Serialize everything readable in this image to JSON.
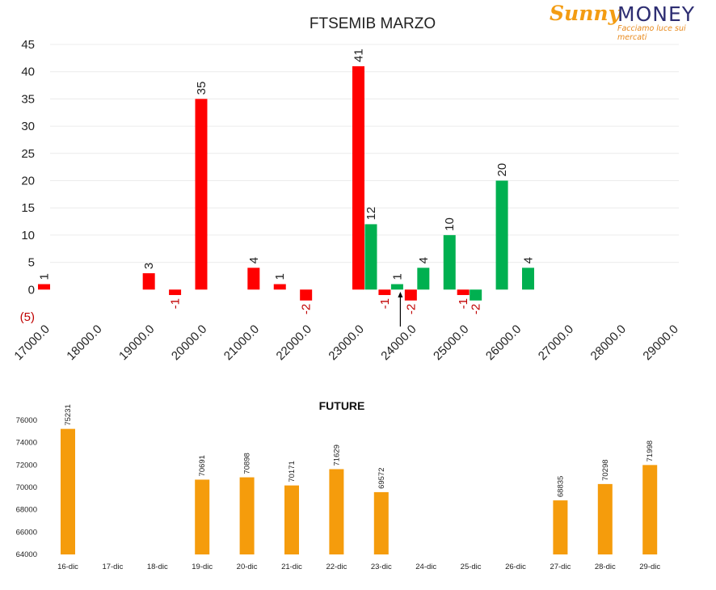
{
  "logo": {
    "brand_part1": "Sunny",
    "brand_part2": "MONEY",
    "tagline": "Facciamo luce sui mercati",
    "colors": {
      "sunny": "#f39c12",
      "money": "#2e2e72"
    }
  },
  "chart_data": [
    {
      "type": "bar",
      "title": "FTSEMIB MARZO",
      "ylim": [
        -5,
        45
      ],
      "yticks": [
        -5,
        0,
        5,
        10,
        15,
        20,
        25,
        30,
        35,
        40,
        45
      ],
      "yticklabels": [
        "(5)",
        "0",
        "5",
        "10",
        "15",
        "20",
        "25",
        "30",
        "35",
        "40",
        "45"
      ],
      "xlim": [
        17000,
        29000
      ],
      "xticks": [
        17000,
        18000,
        19000,
        20000,
        21000,
        22000,
        23000,
        24000,
        25000,
        26000,
        27000,
        28000,
        29000
      ],
      "xticklabels": [
        "17000.0",
        "18000.0",
        "19000.0",
        "20000.0",
        "21000.0",
        "22000.0",
        "23000.0",
        "24000.0",
        "25000.0",
        "26000.0",
        "27000.0",
        "28000.0",
        "29000.0"
      ],
      "grid": true,
      "legend": "none",
      "colors": {
        "put": "#ff0000",
        "call": "#00b050",
        "negative_label": "#c00000",
        "label": "#222222"
      },
      "series": [
        {
          "points": [
            {
              "x": 17000,
              "y": 1
            },
            {
              "x": 19000,
              "y": 3
            },
            {
              "x": 19500,
              "y": -1
            },
            {
              "x": 20000,
              "y": 35
            },
            {
              "x": 21000,
              "y": 4
            },
            {
              "x": 21500,
              "y": 1
            },
            {
              "x": 22000,
              "y": -2
            },
            {
              "x": 23000,
              "y": 41
            },
            {
              "x": 23500,
              "y": -1
            },
            {
              "x": 24000,
              "y": -2
            },
            {
              "x": 25000,
              "y": -1
            }
          ]
        },
        {
          "points": [
            {
              "x": 23000,
              "y": 12
            },
            {
              "x": 23500,
              "y": 1
            },
            {
              "x": 24000,
              "y": 4
            },
            {
              "x": 24500,
              "y": 10
            },
            {
              "x": 25000,
              "y": -2
            },
            {
              "x": 25500,
              "y": 20
            },
            {
              "x": 26000,
              "y": 4
            }
          ]
        }
      ],
      "marker": {
        "x": 23700
      }
    },
    {
      "type": "bar",
      "title": "FUTURE",
      "categories": [
        "16-dic",
        "17-dic",
        "18-dic",
        "19-dic",
        "20-dic",
        "21-dic",
        "22-dic",
        "23-dic",
        "24-dic",
        "25-dic",
        "26-dic",
        "27-dic",
        "28-dic",
        "29-dic"
      ],
      "values": [
        75231,
        null,
        null,
        70691,
        70898,
        70171,
        71629,
        69572,
        null,
        null,
        null,
        68835,
        70298,
        71998
      ],
      "ylim": [
        64000,
        76000
      ],
      "yticks": [
        64000,
        66000,
        68000,
        70000,
        72000,
        74000,
        76000
      ],
      "grid": false,
      "legend": "none",
      "colors": {
        "bar": "#f59c0c"
      }
    }
  ]
}
